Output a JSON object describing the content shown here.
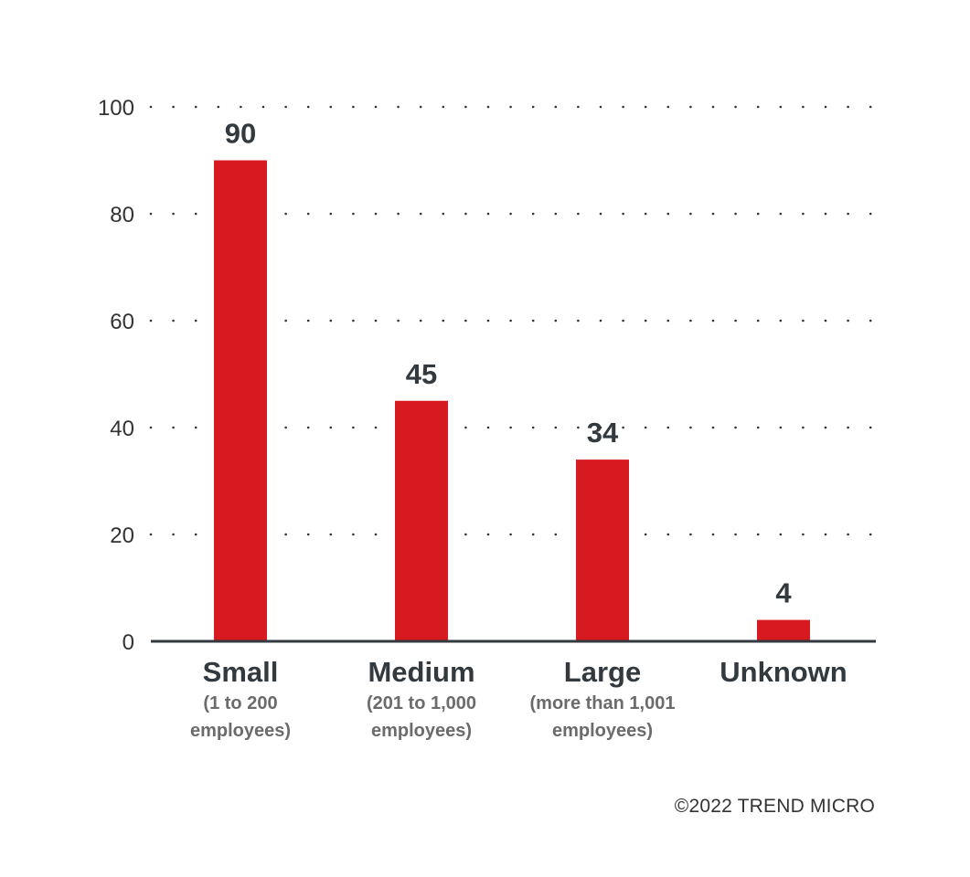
{
  "chart_data": {
    "type": "bar",
    "categories": [
      "Small",
      "Medium",
      "Large",
      "Unknown"
    ],
    "category_sublabels": [
      [
        "(1 to 200",
        "employees)"
      ],
      [
        "(201 to 1,000",
        "employees)"
      ],
      [
        "(more than 1,001",
        "employees)"
      ],
      []
    ],
    "values": [
      90,
      45,
      34,
      4
    ],
    "data_labels": [
      "90",
      "45",
      "34",
      "4"
    ],
    "yticks": [
      "0",
      "20",
      "40",
      "60",
      "80",
      "100"
    ],
    "ylim": [
      0,
      100
    ],
    "title": "",
    "xlabel": "",
    "ylabel": "",
    "grid": true,
    "bar_color": "#d71920",
    "axis_color": "#333a3f",
    "label_color": "#333a3f"
  },
  "footer": {
    "copyright": "©2022 TREND MICRO"
  }
}
